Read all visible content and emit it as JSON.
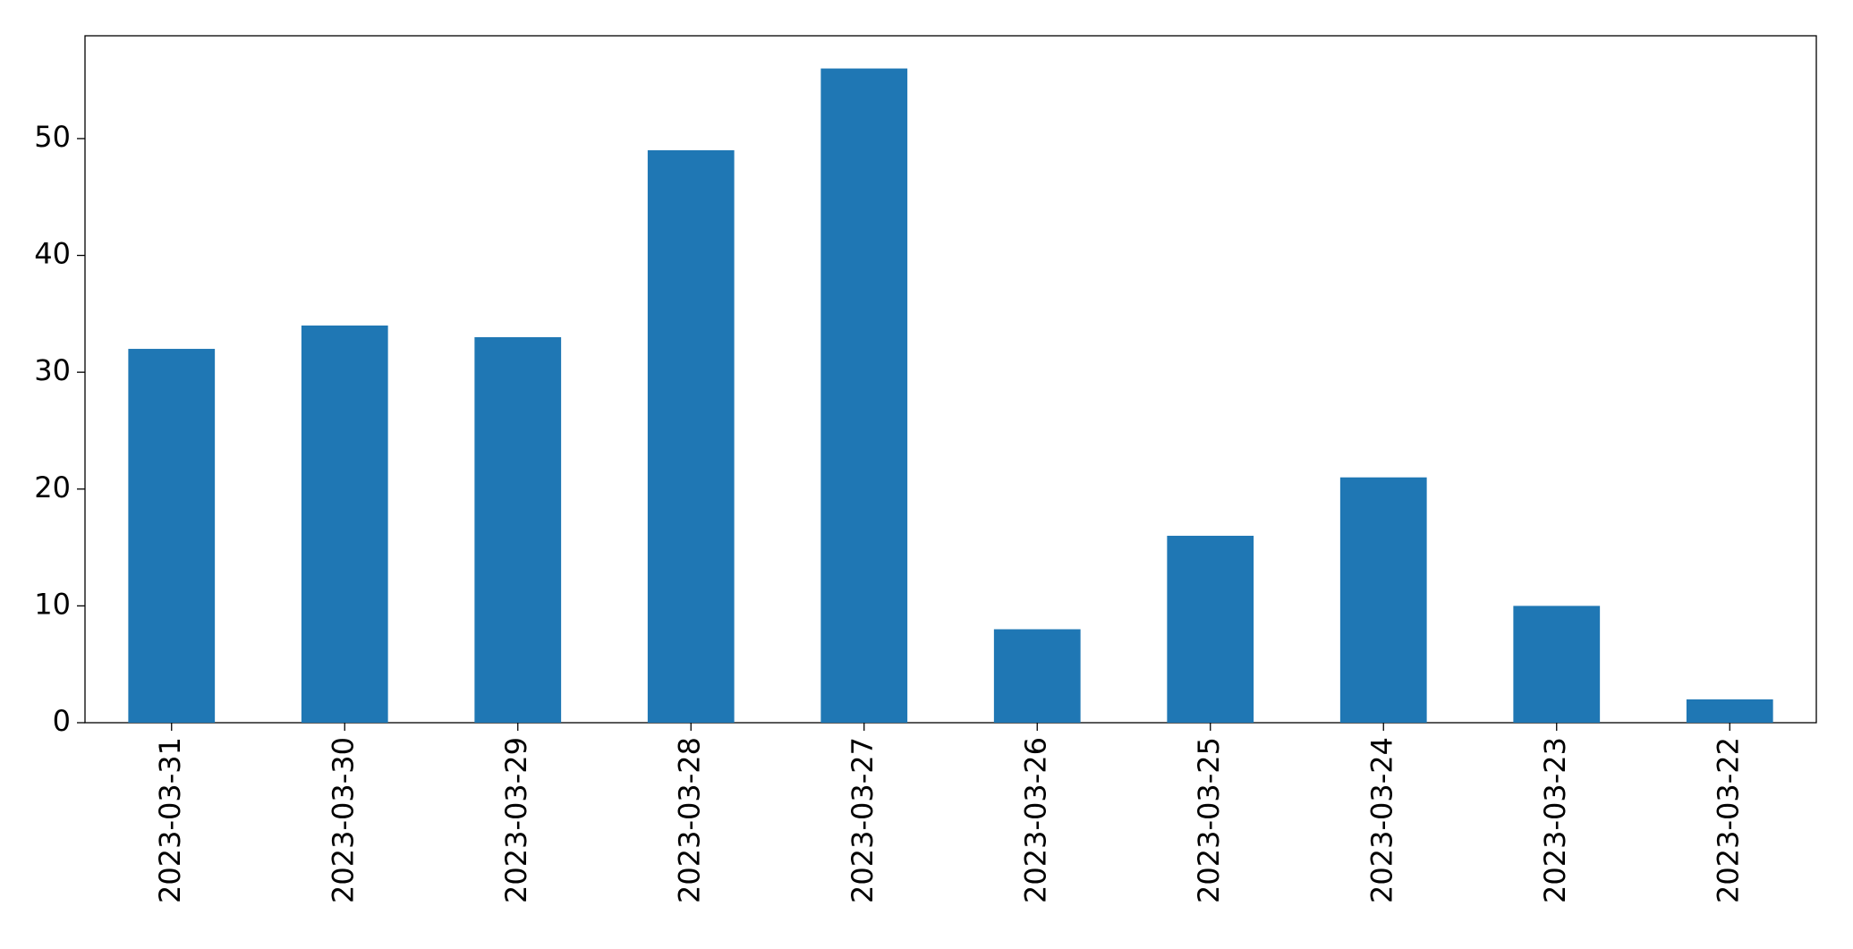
{
  "chart_data": {
    "type": "bar",
    "categories": [
      "2023-03-31",
      "2023-03-30",
      "2023-03-29",
      "2023-03-28",
      "2023-03-27",
      "2023-03-26",
      "2023-03-25",
      "2023-03-24",
      "2023-03-23",
      "2023-03-22"
    ],
    "values": [
      32,
      34,
      33,
      49,
      56,
      8,
      16,
      21,
      10,
      2
    ],
    "color": "#1f77b4",
    "ylim": [
      0,
      58.8
    ],
    "yticks": [
      0,
      10,
      20,
      30,
      40,
      50
    ],
    "grid": false
  }
}
